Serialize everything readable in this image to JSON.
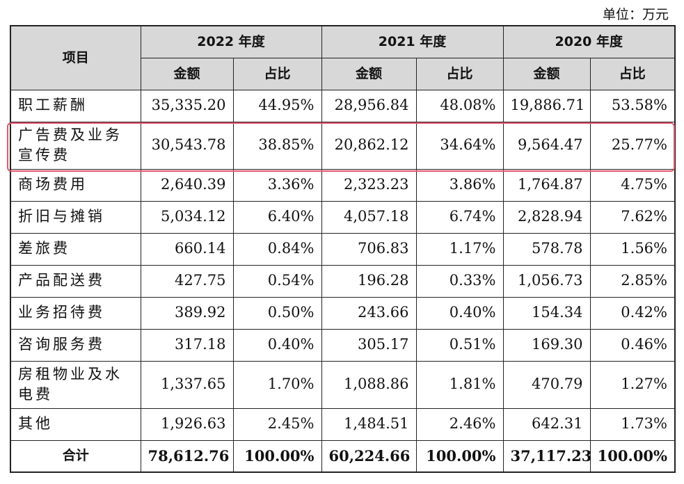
{
  "unit": "单位：万元",
  "header": {
    "item": "项目",
    "years": [
      "2022 年度",
      "2021 年度",
      "2020 年度"
    ],
    "amount": "金额",
    "ratio": "占比"
  },
  "rows": [
    {
      "item": "职工薪酬",
      "v": [
        "35,335.20",
        "44.95%",
        "28,956.84",
        "48.08%",
        "19,886.71",
        "53.58%"
      ]
    },
    {
      "item": "广告费及业务宣传费",
      "v": [
        "30,543.78",
        "38.85%",
        "20,862.12",
        "34.64%",
        "9,564.47",
        "25.77%"
      ]
    },
    {
      "item": "商场费用",
      "v": [
        "2,640.39",
        "3.36%",
        "2,323.23",
        "3.86%",
        "1,764.87",
        "4.75%"
      ]
    },
    {
      "item": "折旧与摊销",
      "v": [
        "5,034.12",
        "6.40%",
        "4,057.18",
        "6.74%",
        "2,828.94",
        "7.62%"
      ]
    },
    {
      "item": "差旅费",
      "v": [
        "660.14",
        "0.84%",
        "706.83",
        "1.17%",
        "578.78",
        "1.56%"
      ]
    },
    {
      "item": "产品配送费",
      "v": [
        "427.75",
        "0.54%",
        "196.28",
        "0.33%",
        "1,056.73",
        "2.85%"
      ]
    },
    {
      "item": "业务招待费",
      "v": [
        "389.92",
        "0.50%",
        "243.66",
        "0.40%",
        "154.34",
        "0.42%"
      ]
    },
    {
      "item": "咨询服务费",
      "v": [
        "317.18",
        "0.40%",
        "305.17",
        "0.51%",
        "169.30",
        "0.46%"
      ]
    },
    {
      "item": "房租物业及水电费",
      "v": [
        "1,337.65",
        "1.70%",
        "1,088.86",
        "1.81%",
        "470.79",
        "1.27%"
      ]
    },
    {
      "item": "其他",
      "v": [
        "1,926.63",
        "2.45%",
        "1,484.51",
        "2.46%",
        "642.31",
        "1.73%"
      ]
    }
  ],
  "total": {
    "item": "合计",
    "v": [
      "78,612.76",
      "100.00%",
      "60,224.66",
      "100.00%",
      "37,117.23",
      "100.00%"
    ]
  },
  "highlight_color": "#e0566b"
}
